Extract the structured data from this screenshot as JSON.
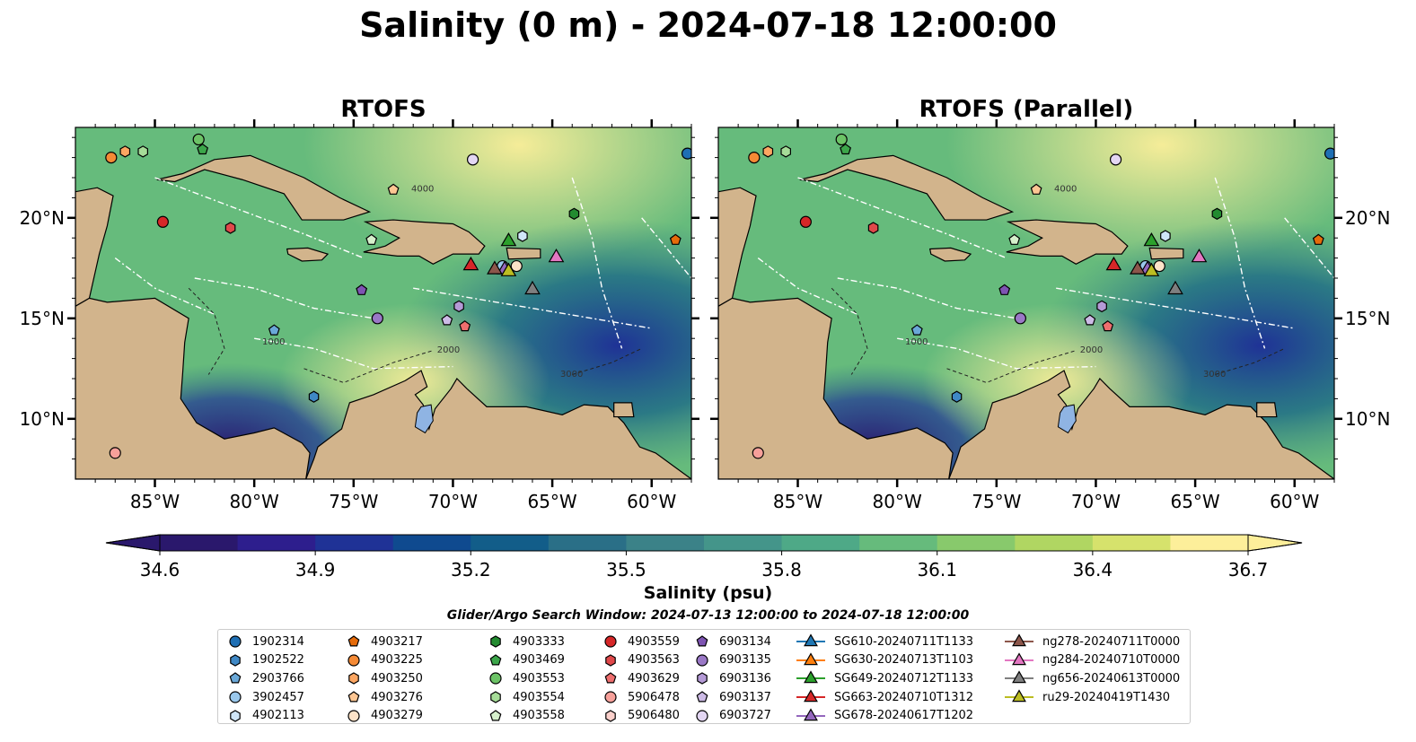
{
  "title": "Salinity (0 m) - 2024-07-18 12:00:00",
  "panels": [
    {
      "title": "RTOFS"
    },
    {
      "title": "RTOFS (Parallel)"
    }
  ],
  "axes": {
    "lon_ticks": [
      "85°W",
      "80°W",
      "75°W",
      "70°W",
      "65°W",
      "60°W"
    ],
    "lat_ticks": [
      "20°N",
      "15°N",
      "10°N"
    ],
    "lon_range": [
      -89,
      -58
    ],
    "lat_range": [
      7,
      24.5
    ]
  },
  "contour_labels": [
    "1000",
    "2000",
    "3000",
    "4000"
  ],
  "colorbar": {
    "label": "Salinity (psu)",
    "ticks": [
      "34.6",
      "34.9",
      "35.2",
      "35.5",
      "35.8",
      "36.1",
      "36.4",
      "36.7"
    ],
    "min": 34.6,
    "max": 36.7,
    "colormap": "haline",
    "colors": [
      "#2a186c",
      "#2d1e8d",
      "#1f3296",
      "#0f4a8f",
      "#125d89",
      "#2a6f87",
      "#3b8288",
      "#44958a",
      "#4ea987",
      "#66bb7c",
      "#88c96c",
      "#b0d662",
      "#d6e26c",
      "#fdef9a"
    ]
  },
  "search_window": "Glider/Argo Search Window: 2024-07-13 12:00:00 to 2024-07-18 12:00:00",
  "land_color": "#d2b48c",
  "lake_color": "#8fb4e3",
  "legend": {
    "columns": [
      [
        {
          "label": "1902314",
          "marker": "circle",
          "color": "#1f6fb4"
        },
        {
          "label": "1902522",
          "marker": "hexagon",
          "color": "#3f88c5"
        },
        {
          "label": "2903766",
          "marker": "pentagon",
          "color": "#6aa8d8"
        },
        {
          "label": "3902457",
          "marker": "circle",
          "color": "#9ac8ec"
        },
        {
          "label": "4902113",
          "marker": "hexagon",
          "color": "#d0e6f8"
        }
      ],
      [
        {
          "label": "4903217",
          "marker": "pentagon",
          "color": "#e66b0a"
        },
        {
          "label": "4903225",
          "marker": "circle",
          "color": "#f58a35"
        },
        {
          "label": "4903250",
          "marker": "hexagon",
          "color": "#fca662"
        },
        {
          "label": "4903276",
          "marker": "pentagon",
          "color": "#fdc693"
        },
        {
          "label": "4903279",
          "marker": "circle",
          "color": "#fde3c8"
        }
      ],
      [
        {
          "label": "4903333",
          "marker": "hexagon",
          "color": "#238b30"
        },
        {
          "label": "4903469",
          "marker": "pentagon",
          "color": "#3ca64a"
        },
        {
          "label": "4903553",
          "marker": "circle",
          "color": "#6cc366"
        },
        {
          "label": "4903554",
          "marker": "hexagon",
          "color": "#a6dc98"
        },
        {
          "label": "4903558",
          "marker": "pentagon",
          "color": "#d6f0cc"
        }
      ],
      [
        {
          "label": "4903559",
          "marker": "circle",
          "color": "#d62728"
        },
        {
          "label": "4903563",
          "marker": "hexagon",
          "color": "#e0484a"
        },
        {
          "label": "4903629",
          "marker": "pentagon",
          "color": "#ee6e6e"
        },
        {
          "label": "5906478",
          "marker": "circle",
          "color": "#f7a09a"
        },
        {
          "label": "5906480",
          "marker": "hexagon",
          "color": "#fbd0cb"
        }
      ],
      [
        {
          "label": "6903134",
          "marker": "pentagon",
          "color": "#7e54b2"
        },
        {
          "label": "6903135",
          "marker": "circle",
          "color": "#9a78c6"
        },
        {
          "label": "6903136",
          "marker": "hexagon",
          "color": "#b49ad6"
        },
        {
          "label": "6903137",
          "marker": "pentagon",
          "color": "#cdbbe6"
        },
        {
          "label": "6903727",
          "marker": "circle",
          "color": "#e3d6f3"
        }
      ],
      [
        {
          "label": "SG610-20240711T1133",
          "marker": "triangle",
          "color": "#1f77b4"
        },
        {
          "label": "SG630-20240713T1103",
          "marker": "triangle",
          "color": "#ff7f0e"
        },
        {
          "label": "SG649-20240712T1133",
          "marker": "triangle",
          "color": "#2ca02c"
        },
        {
          "label": "SG663-20240710T1312",
          "marker": "triangle",
          "color": "#d62728"
        },
        {
          "label": "SG678-20240617T1202",
          "marker": "triangle",
          "color": "#9467bd"
        }
      ],
      [
        {
          "label": "ng278-20240711T0000",
          "marker": "triangle",
          "color": "#8c564b"
        },
        {
          "label": "ng284-20240710T0000",
          "marker": "triangle",
          "color": "#e377c2"
        },
        {
          "label": "ng656-20240613T0000",
          "marker": "triangle",
          "color": "#7f7f7f"
        },
        {
          "label": "ru29-20240419T1430",
          "marker": "triangle",
          "color": "#bcbd22"
        }
      ]
    ]
  },
  "map_markers": [
    {
      "label": "1902314",
      "lon": -58.2,
      "lat": 23.2
    },
    {
      "label": "3902457",
      "lon": -67.5,
      "lat": 17.6
    },
    {
      "label": "4902113",
      "lon": -66.5,
      "lat": 19.1
    },
    {
      "label": "4903217",
      "lon": -58.8,
      "lat": 18.9
    },
    {
      "label": "4903225",
      "lon": -87.2,
      "lat": 23.0
    },
    {
      "label": "4903250",
      "lon": -86.5,
      "lat": 23.3
    },
    {
      "label": "4903276",
      "lon": -73.0,
      "lat": 21.4
    },
    {
      "label": "4903279",
      "lon": -66.8,
      "lat": 17.6
    },
    {
      "label": "4903333",
      "lon": -63.9,
      "lat": 20.2
    },
    {
      "label": "4903469",
      "lon": -82.6,
      "lat": 23.4
    },
    {
      "label": "4903553",
      "lon": -82.8,
      "lat": 23.9
    },
    {
      "label": "4903554",
      "lon": -85.6,
      "lat": 23.3
    },
    {
      "label": "4903558",
      "lon": -74.1,
      "lat": 18.9
    },
    {
      "label": "4903559",
      "lon": -84.6,
      "lat": 19.8
    },
    {
      "label": "4903563",
      "lon": -81.2,
      "lat": 19.5
    },
    {
      "label": "4903629",
      "lon": -69.4,
      "lat": 14.6
    },
    {
      "label": "5906478",
      "lon": -87.0,
      "lat": 8.3
    },
    {
      "label": "6903134",
      "lon": -74.6,
      "lat": 16.4
    },
    {
      "label": "6903135",
      "lon": -73.8,
      "lat": 15.0
    },
    {
      "label": "6903136",
      "lon": -69.7,
      "lat": 15.6
    },
    {
      "label": "6903137",
      "lon": -70.3,
      "lat": 14.9
    },
    {
      "label": "6903727",
      "lon": -69.0,
      "lat": 22.9
    },
    {
      "label": "1902522",
      "lon": -77.0,
      "lat": 11.1
    },
    {
      "label": "2903766",
      "lon": -79.0,
      "lat": 14.4
    },
    {
      "label": "SG649-20240712T1133",
      "lon": -67.2,
      "lat": 18.9
    },
    {
      "label": "SG663-20240710T1312",
      "lon": -69.1,
      "lat": 17.7
    },
    {
      "label": "SG678-20240617T1202",
      "lon": -67.4,
      "lat": 17.5
    },
    {
      "label": "ng278-20240711T0000",
      "lon": -67.9,
      "lat": 17.5
    },
    {
      "label": "ng284-20240710T0000",
      "lon": -64.8,
      "lat": 18.1
    },
    {
      "label": "ng656-20240613T0000",
      "lon": -66.0,
      "lat": 16.5
    },
    {
      "label": "ru29-20240419T1430",
      "lon": -67.2,
      "lat": 17.4
    }
  ]
}
